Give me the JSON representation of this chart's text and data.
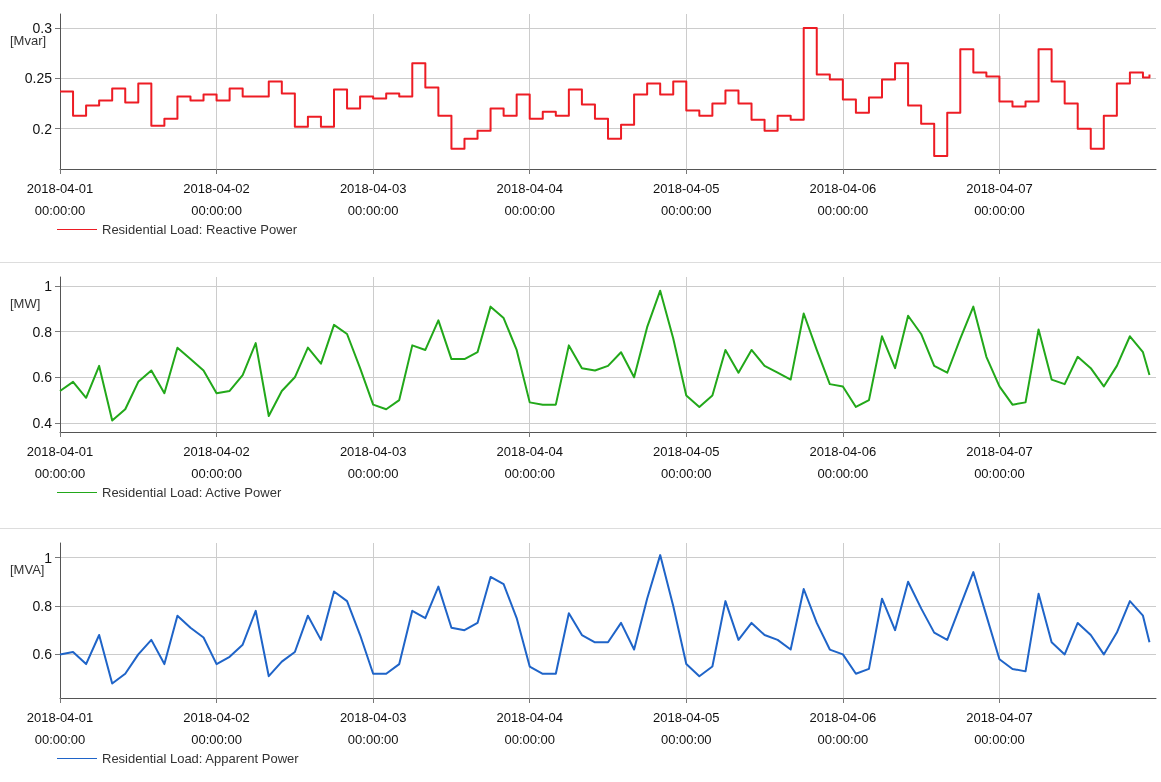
{
  "chart_data": [
    {
      "type": "step",
      "ylabel": "[Mvar]",
      "legend": "bottom left",
      "grid": true,
      "marker": "none",
      "line_style": "solid",
      "x": [
        "2018-04-01T00:00",
        "2018-04-01T02:00",
        "2018-04-01T04:00",
        "2018-04-01T06:00",
        "2018-04-01T08:00",
        "2018-04-01T10:00",
        "2018-04-01T12:00",
        "2018-04-01T14:00",
        "2018-04-01T16:00",
        "2018-04-01T18:00",
        "2018-04-01T20:00",
        "2018-04-01T22:00",
        "2018-04-02T00:00",
        "2018-04-02T02:00",
        "2018-04-02T04:00",
        "2018-04-02T06:00",
        "2018-04-02T08:00",
        "2018-04-02T10:00",
        "2018-04-02T12:00",
        "2018-04-02T14:00",
        "2018-04-02T16:00",
        "2018-04-02T18:00",
        "2018-04-02T20:00",
        "2018-04-02T22:00",
        "2018-04-03T00:00",
        "2018-04-03T02:00",
        "2018-04-03T04:00",
        "2018-04-03T06:00",
        "2018-04-03T08:00",
        "2018-04-03T10:00",
        "2018-04-03T12:00",
        "2018-04-03T14:00",
        "2018-04-03T16:00",
        "2018-04-03T18:00",
        "2018-04-03T20:00",
        "2018-04-03T22:00",
        "2018-04-04T00:00",
        "2018-04-04T02:00",
        "2018-04-04T04:00",
        "2018-04-04T06:00",
        "2018-04-04T08:00",
        "2018-04-04T10:00",
        "2018-04-04T12:00",
        "2018-04-04T14:00",
        "2018-04-04T16:00",
        "2018-04-04T18:00",
        "2018-04-04T20:00",
        "2018-04-04T22:00",
        "2018-04-05T00:00",
        "2018-04-05T02:00",
        "2018-04-05T04:00",
        "2018-04-05T06:00",
        "2018-04-05T08:00",
        "2018-04-05T10:00",
        "2018-04-05T12:00",
        "2018-04-05T14:00",
        "2018-04-05T16:00",
        "2018-04-05T18:00",
        "2018-04-05T20:00",
        "2018-04-05T22:00",
        "2018-04-06T00:00",
        "2018-04-06T02:00",
        "2018-04-06T04:00",
        "2018-04-06T06:00",
        "2018-04-06T08:00",
        "2018-04-06T10:00",
        "2018-04-06T12:00",
        "2018-04-06T14:00",
        "2018-04-06T16:00",
        "2018-04-06T18:00",
        "2018-04-06T20:00",
        "2018-04-06T22:00",
        "2018-04-07T00:00",
        "2018-04-07T02:00",
        "2018-04-07T04:00",
        "2018-04-07T06:00",
        "2018-04-07T08:00",
        "2018-04-07T10:00",
        "2018-04-07T12:00",
        "2018-04-07T14:00",
        "2018-04-07T16:00",
        "2018-04-07T18:00",
        "2018-04-07T20:00",
        "2018-04-07T22:00",
        "2018-04-07T23:00"
      ],
      "xlim": [
        "2018-04-01T00:00",
        "2018-04-08T00:00"
      ],
      "xticks": [
        {
          "value": "2018-04-01T00:00",
          "label": "2018-04-01\n00:00:00"
        },
        {
          "value": "2018-04-02T00:00",
          "label": "2018-04-02\n00:00:00"
        },
        {
          "value": "2018-04-03T00:00",
          "label": "2018-04-03\n00:00:00"
        },
        {
          "value": "2018-04-04T00:00",
          "label": "2018-04-04\n00:00:00"
        },
        {
          "value": "2018-04-05T00:00",
          "label": "2018-04-05\n00:00:00"
        },
        {
          "value": "2018-04-06T00:00",
          "label": "2018-04-06\n00:00:00"
        },
        {
          "value": "2018-04-07T00:00",
          "label": "2018-04-07\n00:00:00"
        }
      ],
      "ylim": [
        0.16,
        0.314
      ],
      "yticks": [
        0.2,
        0.25,
        0.3
      ],
      "series": [
        {
          "name": "Residential Load: Reactive Power",
          "color": "#ed1c24",
          "values": [
            0.237,
            0.213,
            0.223,
            0.228,
            0.24,
            0.226,
            0.245,
            0.203,
            0.21,
            0.232,
            0.228,
            0.234,
            0.228,
            0.24,
            0.232,
            0.232,
            0.247,
            0.235,
            0.202,
            0.212,
            0.202,
            0.239,
            0.22,
            0.232,
            0.23,
            0.235,
            0.232,
            0.265,
            0.241,
            0.213,
            0.18,
            0.19,
            0.198,
            0.22,
            0.213,
            0.234,
            0.21,
            0.217,
            0.213,
            0.239,
            0.224,
            0.21,
            0.19,
            0.204,
            0.234,
            0.245,
            0.234,
            0.247,
            0.218,
            0.213,
            0.225,
            0.238,
            0.225,
            0.209,
            0.198,
            0.213,
            0.209,
            0.3,
            0.254,
            0.249,
            0.229,
            0.216,
            0.231,
            0.249,
            0.265,
            0.223,
            0.205,
            0.173,
            0.216,
            0.279,
            0.256,
            0.252,
            0.227,
            0.222,
            0.227,
            0.279,
            0.247,
            0.225,
            0.2,
            0.18,
            0.213,
            0.245,
            0.256,
            0.251,
            0.254
          ]
        }
      ]
    },
    {
      "type": "line",
      "ylabel": "[MW]",
      "legend": "bottom left",
      "grid": true,
      "marker": "none",
      "line_style": "solid",
      "x": [
        "2018-04-01T00:00",
        "2018-04-01T02:00",
        "2018-04-01T04:00",
        "2018-04-01T06:00",
        "2018-04-01T08:00",
        "2018-04-01T10:00",
        "2018-04-01T12:00",
        "2018-04-01T14:00",
        "2018-04-01T16:00",
        "2018-04-01T18:00",
        "2018-04-01T20:00",
        "2018-04-01T22:00",
        "2018-04-02T00:00",
        "2018-04-02T02:00",
        "2018-04-02T04:00",
        "2018-04-02T06:00",
        "2018-04-02T08:00",
        "2018-04-02T10:00",
        "2018-04-02T12:00",
        "2018-04-02T14:00",
        "2018-04-02T16:00",
        "2018-04-02T18:00",
        "2018-04-02T20:00",
        "2018-04-02T22:00",
        "2018-04-03T00:00",
        "2018-04-03T02:00",
        "2018-04-03T04:00",
        "2018-04-03T06:00",
        "2018-04-03T08:00",
        "2018-04-03T10:00",
        "2018-04-03T12:00",
        "2018-04-03T14:00",
        "2018-04-03T16:00",
        "2018-04-03T18:00",
        "2018-04-03T20:00",
        "2018-04-03T22:00",
        "2018-04-04T00:00",
        "2018-04-04T02:00",
        "2018-04-04T04:00",
        "2018-04-04T06:00",
        "2018-04-04T08:00",
        "2018-04-04T10:00",
        "2018-04-04T12:00",
        "2018-04-04T14:00",
        "2018-04-04T16:00",
        "2018-04-04T18:00",
        "2018-04-04T20:00",
        "2018-04-04T22:00",
        "2018-04-05T00:00",
        "2018-04-05T02:00",
        "2018-04-05T04:00",
        "2018-04-05T06:00",
        "2018-04-05T08:00",
        "2018-04-05T10:00",
        "2018-04-05T12:00",
        "2018-04-05T14:00",
        "2018-04-05T16:00",
        "2018-04-05T18:00",
        "2018-04-05T20:00",
        "2018-04-05T22:00",
        "2018-04-06T00:00",
        "2018-04-06T02:00",
        "2018-04-06T04:00",
        "2018-04-06T06:00",
        "2018-04-06T08:00",
        "2018-04-06T10:00",
        "2018-04-06T12:00",
        "2018-04-06T14:00",
        "2018-04-06T16:00",
        "2018-04-06T18:00",
        "2018-04-06T20:00",
        "2018-04-06T22:00",
        "2018-04-07T00:00",
        "2018-04-07T02:00",
        "2018-04-07T04:00",
        "2018-04-07T06:00",
        "2018-04-07T08:00",
        "2018-04-07T10:00",
        "2018-04-07T12:00",
        "2018-04-07T14:00",
        "2018-04-07T16:00",
        "2018-04-07T18:00",
        "2018-04-07T20:00",
        "2018-04-07T22:00",
        "2018-04-07T23:00"
      ],
      "xlim": [
        "2018-04-01T00:00",
        "2018-04-08T00:00"
      ],
      "xticks": [
        {
          "value": "2018-04-01T00:00",
          "label": "2018-04-01\n00:00:00"
        },
        {
          "value": "2018-04-02T00:00",
          "label": "2018-04-02\n00:00:00"
        },
        {
          "value": "2018-04-03T00:00",
          "label": "2018-04-03\n00:00:00"
        },
        {
          "value": "2018-04-04T00:00",
          "label": "2018-04-04\n00:00:00"
        },
        {
          "value": "2018-04-05T00:00",
          "label": "2018-04-05\n00:00:00"
        },
        {
          "value": "2018-04-06T00:00",
          "label": "2018-04-06\n00:00:00"
        },
        {
          "value": "2018-04-07T00:00",
          "label": "2018-04-07\n00:00:00"
        }
      ],
      "ylim": [
        0.36,
        1.04
      ],
      "yticks": [
        0.4,
        0.6,
        0.8,
        1
      ],
      "series": [
        {
          "name": "Residential Load: Active Power",
          "color": "#22a81a",
          "values": [
            0.54,
            0.58,
            0.51,
            0.65,
            0.41,
            0.46,
            0.58,
            0.63,
            0.53,
            0.73,
            0.68,
            0.63,
            0.53,
            0.54,
            0.61,
            0.75,
            0.43,
            0.54,
            0.6,
            0.73,
            0.66,
            0.83,
            0.79,
            0.64,
            0.48,
            0.46,
            0.5,
            0.74,
            0.72,
            0.85,
            0.68,
            0.68,
            0.71,
            0.91,
            0.86,
            0.72,
            0.49,
            0.48,
            0.48,
            0.74,
            0.64,
            0.63,
            0.65,
            0.71,
            0.6,
            0.82,
            0.98,
            0.77,
            0.52,
            0.47,
            0.52,
            0.72,
            0.62,
            0.72,
            0.65,
            0.62,
            0.59,
            0.88,
            0.72,
            0.57,
            0.56,
            0.47,
            0.5,
            0.78,
            0.64,
            0.87,
            0.79,
            0.65,
            0.62,
            0.77,
            0.91,
            0.69,
            0.56,
            0.48,
            0.49,
            0.81,
            0.59,
            0.57,
            0.69,
            0.64,
            0.56,
            0.65,
            0.78,
            0.71,
            0.61
          ]
        }
      ]
    },
    {
      "type": "line",
      "ylabel": "[MVA]",
      "legend": "bottom left",
      "grid": true,
      "marker": "none",
      "line_style": "solid",
      "x": [
        "2018-04-01T00:00",
        "2018-04-01T02:00",
        "2018-04-01T04:00",
        "2018-04-01T06:00",
        "2018-04-01T08:00",
        "2018-04-01T10:00",
        "2018-04-01T12:00",
        "2018-04-01T14:00",
        "2018-04-01T16:00",
        "2018-04-01T18:00",
        "2018-04-01T20:00",
        "2018-04-01T22:00",
        "2018-04-02T00:00",
        "2018-04-02T02:00",
        "2018-04-02T04:00",
        "2018-04-02T06:00",
        "2018-04-02T08:00",
        "2018-04-02T10:00",
        "2018-04-02T12:00",
        "2018-04-02T14:00",
        "2018-04-02T16:00",
        "2018-04-02T18:00",
        "2018-04-02T20:00",
        "2018-04-02T22:00",
        "2018-04-03T00:00",
        "2018-04-03T02:00",
        "2018-04-03T04:00",
        "2018-04-03T06:00",
        "2018-04-03T08:00",
        "2018-04-03T10:00",
        "2018-04-03T12:00",
        "2018-04-03T14:00",
        "2018-04-03T16:00",
        "2018-04-03T18:00",
        "2018-04-03T20:00",
        "2018-04-03T22:00",
        "2018-04-04T00:00",
        "2018-04-04T02:00",
        "2018-04-04T04:00",
        "2018-04-04T06:00",
        "2018-04-04T08:00",
        "2018-04-04T10:00",
        "2018-04-04T12:00",
        "2018-04-04T14:00",
        "2018-04-04T16:00",
        "2018-04-04T18:00",
        "2018-04-04T20:00",
        "2018-04-04T22:00",
        "2018-04-05T00:00",
        "2018-04-05T02:00",
        "2018-04-05T04:00",
        "2018-04-05T06:00",
        "2018-04-05T08:00",
        "2018-04-05T10:00",
        "2018-04-05T12:00",
        "2018-04-05T14:00",
        "2018-04-05T16:00",
        "2018-04-05T18:00",
        "2018-04-05T20:00",
        "2018-04-05T22:00",
        "2018-04-06T00:00",
        "2018-04-06T02:00",
        "2018-04-06T04:00",
        "2018-04-06T06:00",
        "2018-04-06T08:00",
        "2018-04-06T10:00",
        "2018-04-06T12:00",
        "2018-04-06T14:00",
        "2018-04-06T16:00",
        "2018-04-06T18:00",
        "2018-04-06T20:00",
        "2018-04-06T22:00",
        "2018-04-07T00:00",
        "2018-04-07T02:00",
        "2018-04-07T04:00",
        "2018-04-07T06:00",
        "2018-04-07T08:00",
        "2018-04-07T10:00",
        "2018-04-07T12:00",
        "2018-04-07T14:00",
        "2018-04-07T16:00",
        "2018-04-07T18:00",
        "2018-04-07T20:00",
        "2018-04-07T22:00",
        "2018-04-07T23:00"
      ],
      "xlim": [
        "2018-04-01T00:00",
        "2018-04-08T00:00"
      ],
      "xticks": [
        {
          "value": "2018-04-01T00:00",
          "label": "2018-04-01\n00:00:00"
        },
        {
          "value": "2018-04-02T00:00",
          "label": "2018-04-02\n00:00:00"
        },
        {
          "value": "2018-04-03T00:00",
          "label": "2018-04-03\n00:00:00"
        },
        {
          "value": "2018-04-04T00:00",
          "label": "2018-04-04\n00:00:00"
        },
        {
          "value": "2018-04-05T00:00",
          "label": "2018-04-05\n00:00:00"
        },
        {
          "value": "2018-04-06T00:00",
          "label": "2018-04-06\n00:00:00"
        },
        {
          "value": "2018-04-07T00:00",
          "label": "2018-04-07\n00:00:00"
        }
      ],
      "ylim": [
        0.42,
        1.06
      ],
      "yticks": [
        0.6,
        0.8,
        1
      ],
      "series": [
        {
          "name": "Residential Load: Apparent Power",
          "color": "#1f64c8",
          "values": [
            0.6,
            0.61,
            0.56,
            0.68,
            0.48,
            0.52,
            0.6,
            0.66,
            0.56,
            0.76,
            0.71,
            0.67,
            0.56,
            0.59,
            0.64,
            0.78,
            0.51,
            0.57,
            0.61,
            0.76,
            0.66,
            0.86,
            0.82,
            0.68,
            0.52,
            0.52,
            0.56,
            0.78,
            0.75,
            0.88,
            0.71,
            0.7,
            0.73,
            0.92,
            0.89,
            0.75,
            0.55,
            0.52,
            0.52,
            0.77,
            0.68,
            0.65,
            0.65,
            0.73,
            0.62,
            0.83,
            1.01,
            0.8,
            0.56,
            0.51,
            0.55,
            0.82,
            0.66,
            0.73,
            0.68,
            0.66,
            0.62,
            0.87,
            0.73,
            0.62,
            0.6,
            0.52,
            0.54,
            0.83,
            0.7,
            0.9,
            0.79,
            0.69,
            0.66,
            0.8,
            0.94,
            0.76,
            0.58,
            0.54,
            0.53,
            0.85,
            0.65,
            0.6,
            0.73,
            0.68,
            0.6,
            0.69,
            0.82,
            0.76,
            0.65
          ]
        }
      ]
    }
  ]
}
